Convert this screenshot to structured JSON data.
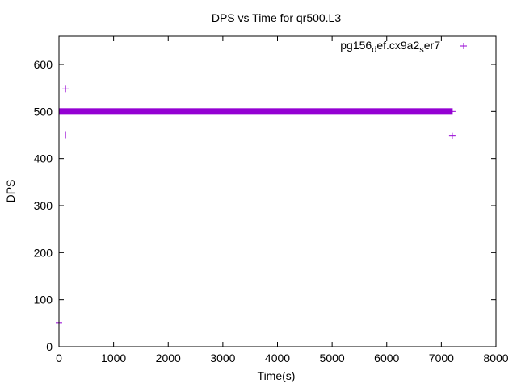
{
  "chart_data": {
    "type": "scatter",
    "title": "DPS vs Time for qr500.L3",
    "xlabel": "Time(s)",
    "ylabel": "DPS",
    "xlim": [
      0,
      8000
    ],
    "ylim": [
      0,
      660
    ],
    "xticks": [
      0,
      1000,
      2000,
      3000,
      4000,
      5000,
      6000,
      7000,
      8000
    ],
    "yticks": [
      0,
      100,
      200,
      300,
      400,
      500,
      600
    ],
    "grid": false,
    "legend_position": "top-right",
    "series": [
      {
        "legend_base": "pg156",
        "legend_sub1": "d",
        "legend_mid": "ef.cx9a2",
        "legend_sub2": "s",
        "legend_end": "er7",
        "color": "#9400d3",
        "marker": "plus",
        "dense_band": {
          "x_start": 0,
          "x_end": 7200,
          "y": 500
        },
        "points": [
          {
            "x": 0,
            "y": 50
          },
          {
            "x": 120,
            "y": 548
          },
          {
            "x": 120,
            "y": 450
          },
          {
            "x": 7200,
            "y": 448
          },
          {
            "x": 7200,
            "y": 500
          }
        ]
      }
    ]
  }
}
